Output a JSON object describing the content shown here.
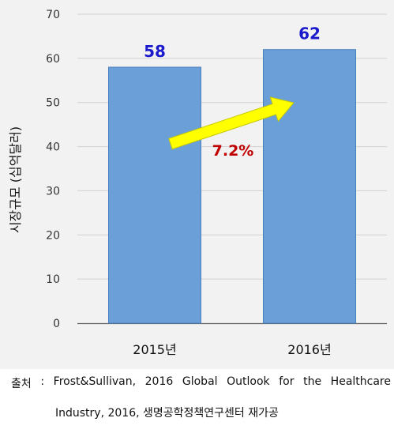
{
  "chart_data": {
    "type": "bar",
    "categories": [
      "2015년",
      "2016년"
    ],
    "values": [
      58,
      62
    ],
    "data_labels": [
      "58",
      "62"
    ],
    "ylabel": "시장규모 (십억달러)",
    "xlabel": "",
    "ylim": [
      0,
      70
    ],
    "yticks": [
      0,
      10,
      20,
      30,
      40,
      50,
      60,
      70
    ],
    "grid": true,
    "legend": "none",
    "annotation": "7.2%",
    "colors": {
      "bar": "#6a9fd8",
      "bar_edge": "#4a7fbf",
      "data_label": "#1a1acc",
      "arrow": "#ffff00",
      "arrow_edge": "#c8c800",
      "annotation": "#c00000",
      "background": "#f2f2f2",
      "grid": "#d0d0d0"
    }
  },
  "source": {
    "words_line1": [
      "출처",
      ":",
      "Frost&Sullivan,",
      "2016",
      "Global",
      "Outlook",
      "for",
      "the",
      "Healthcare"
    ],
    "line2": "Industry, 2016, 생명공학정책연구센터 재가공"
  }
}
